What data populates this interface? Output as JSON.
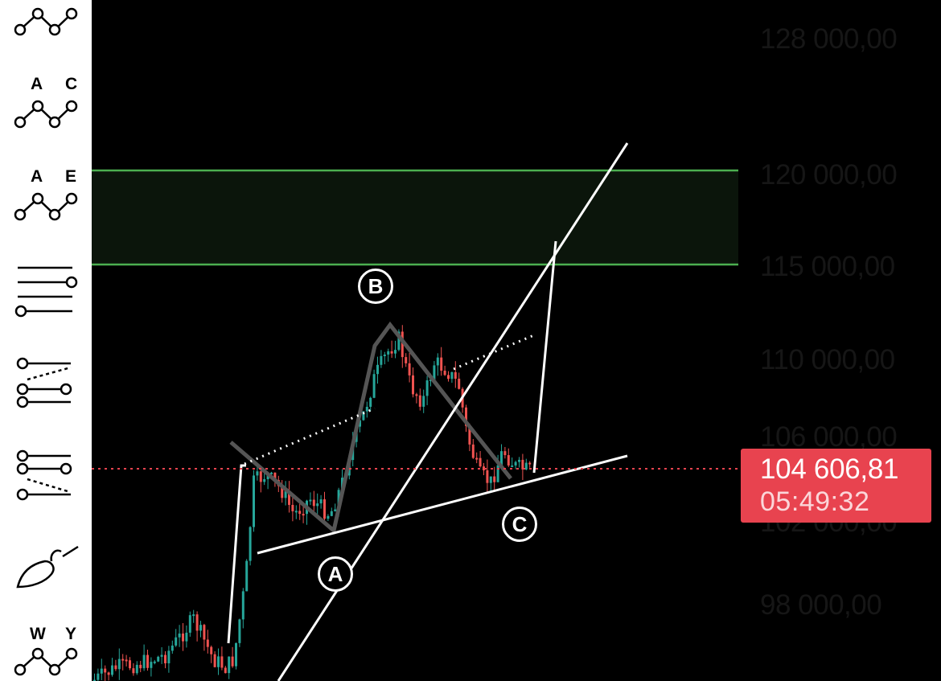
{
  "toolbar": {
    "tools": [
      {
        "name": "zigzag-tool",
        "letters": []
      },
      {
        "name": "abc-correction-tool",
        "letters": [
          "A",
          "C"
        ]
      },
      {
        "name": "triangle-abcde-tool",
        "letters": [
          "A",
          "E"
        ]
      },
      {
        "name": "horizontal-lines-tool",
        "letters": []
      },
      {
        "name": "fan-lines-up-tool",
        "letters": []
      },
      {
        "name": "fan-lines-down-tool",
        "letters": []
      },
      {
        "name": "brush-tool",
        "letters": []
      },
      {
        "name": "wxy-correction-tool",
        "letters": [
          "W",
          "Y"
        ]
      }
    ]
  },
  "chart": {
    "price_axis": [
      "128 000,00",
      "120 000,00",
      "115 000,00",
      "110 000,00",
      "106 000,00",
      "102 000,00",
      "98 000,00"
    ],
    "current_price": "104 606,81",
    "countdown": "05:49:32",
    "wave_labels": {
      "a": "A",
      "b": "B",
      "c": "C"
    },
    "colors": {
      "bull": "#26a69a",
      "bear": "#ef5350",
      "zone": "#4caf50",
      "price_line": "#e8434f",
      "pattern": "#555555",
      "trendline": "#ffffff"
    },
    "target_zone": {
      "low": 115000,
      "high": 120000
    }
  }
}
